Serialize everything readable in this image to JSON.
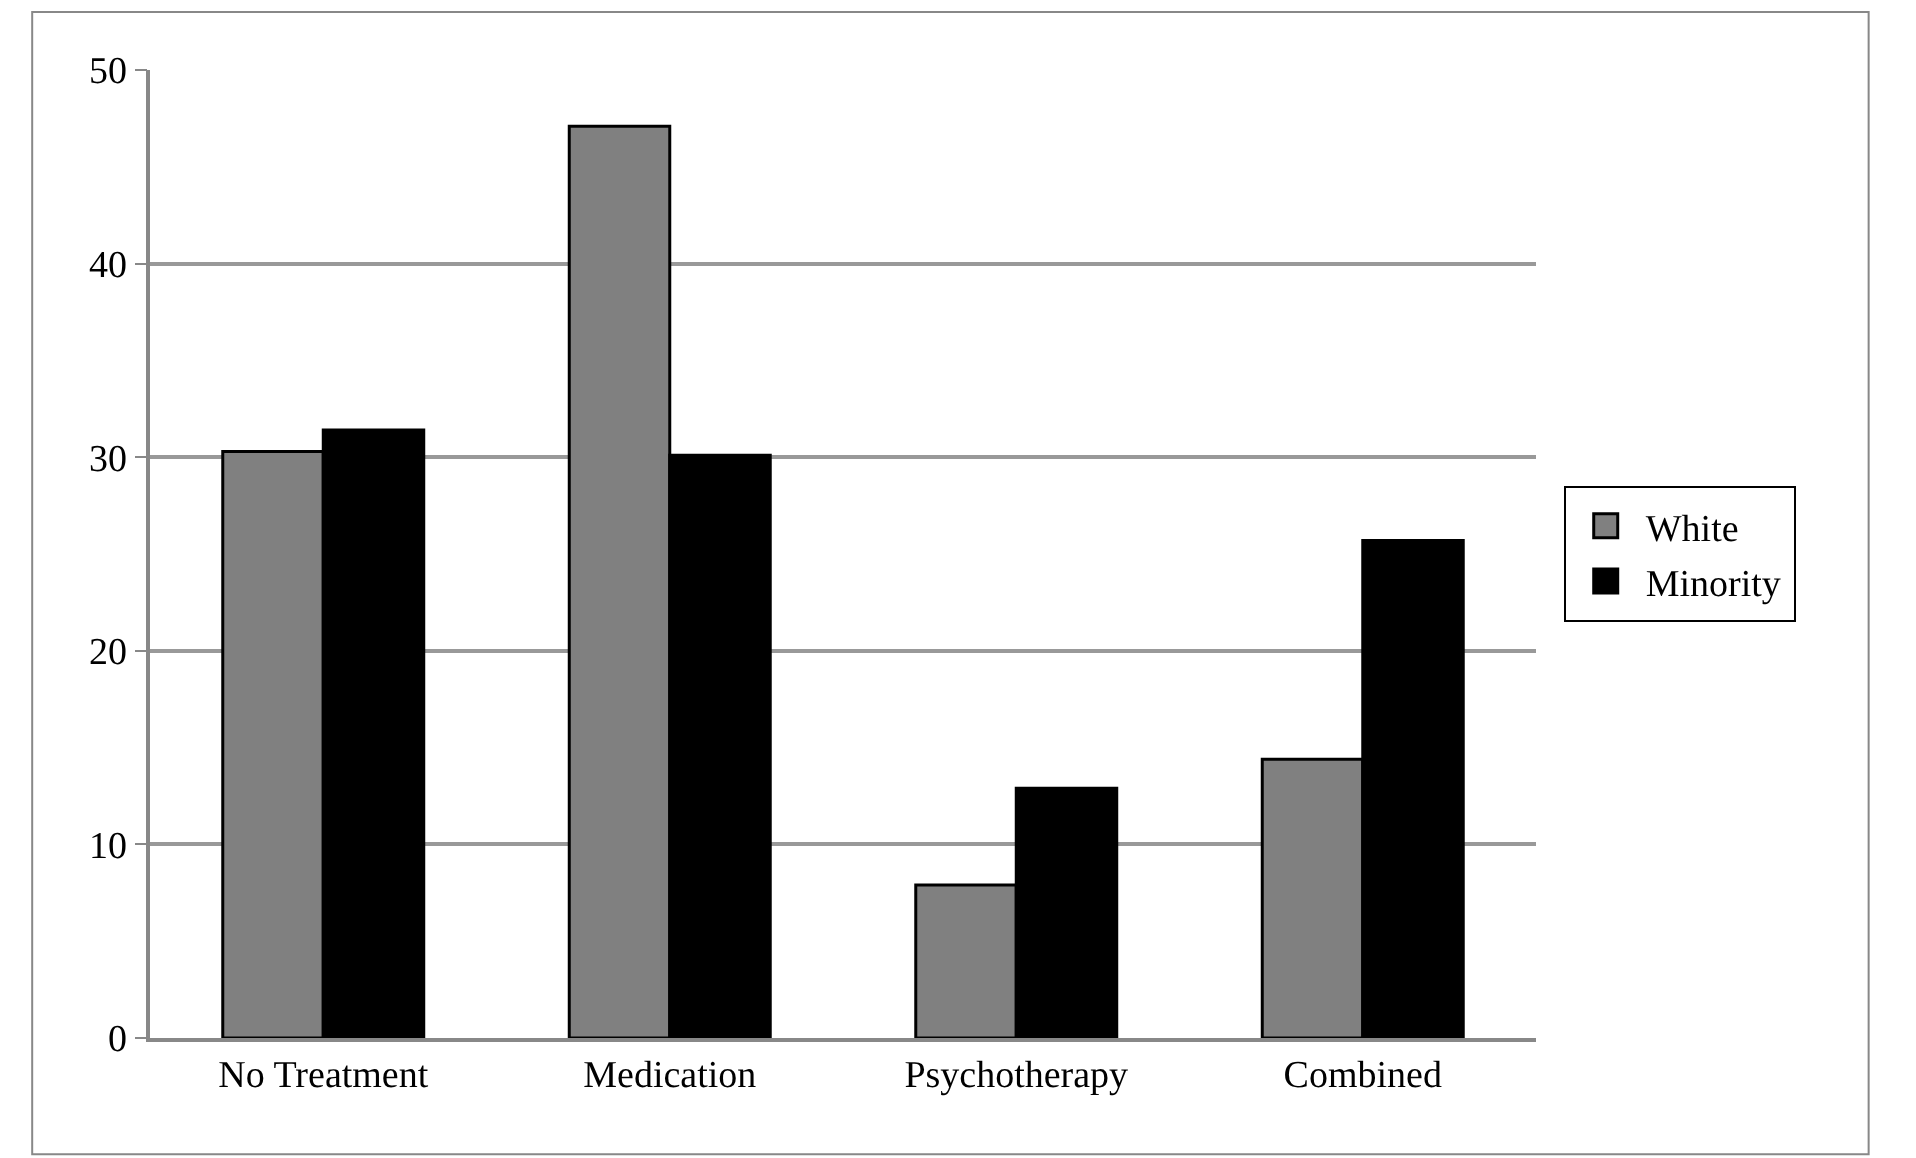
{
  "chart_data": {
    "type": "bar",
    "categories": [
      "No Treatment",
      "Medication",
      "Psychotherapy",
      "Combined"
    ],
    "series": [
      {
        "name": "White",
        "color": "#808080",
        "values": [
          30.3,
          47.1,
          7.9,
          14.4
        ]
      },
      {
        "name": "Minority",
        "color": "#000000",
        "values": [
          31.4,
          30.1,
          12.9,
          25.7
        ]
      }
    ],
    "ylim": [
      0,
      50
    ],
    "yticks": [
      0,
      10,
      20,
      30,
      40,
      50
    ],
    "grid": "y",
    "legend": "right"
  }
}
